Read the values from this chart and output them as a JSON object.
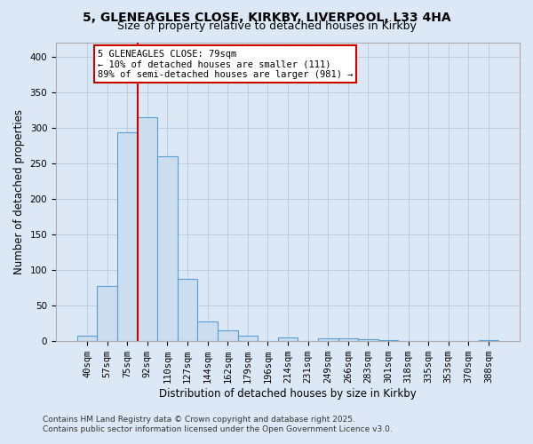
{
  "title1": "5, GLENEAGLES CLOSE, KIRKBY, LIVERPOOL, L33 4HA",
  "title2": "Size of property relative to detached houses in Kirkby",
  "xlabel": "Distribution of detached houses by size in Kirkby",
  "ylabel": "Number of detached properties",
  "bin_labels": [
    "40sqm",
    "57sqm",
    "75sqm",
    "92sqm",
    "110sqm",
    "127sqm",
    "144sqm",
    "162sqm",
    "179sqm",
    "196sqm",
    "214sqm",
    "231sqm",
    "249sqm",
    "266sqm",
    "283sqm",
    "301sqm",
    "318sqm",
    "335sqm",
    "353sqm",
    "370sqm",
    "388sqm"
  ],
  "bar_heights": [
    8,
    78,
    293,
    314,
    260,
    87,
    28,
    15,
    8,
    0,
    5,
    0,
    4,
    4,
    3,
    1,
    0,
    0,
    0,
    0,
    2
  ],
  "bar_color": "#ccddf0",
  "bar_edge_color": "#5a9fd4",
  "vline_x_index": 2,
  "vline_color": "#cc0000",
  "ylim": [
    0,
    420
  ],
  "yticks": [
    0,
    50,
    100,
    150,
    200,
    250,
    300,
    350,
    400
  ],
  "annotation_title": "5 GLENEAGLES CLOSE: 79sqm",
  "annotation_line1": "← 10% of detached houses are smaller (111)",
  "annotation_line2": "89% of semi-detached houses are larger (981) →",
  "annotation_box_color": "#ffffff",
  "annotation_box_edgecolor": "#cc0000",
  "footnote1": "Contains HM Land Registry data © Crown copyright and database right 2025.",
  "footnote2": "Contains public sector information licensed under the Open Government Licence v3.0.",
  "background_color": "#dce8f5",
  "grid_color": "#b8cfe0",
  "title_fontsize": 10,
  "subtitle_fontsize": 9,
  "axis_label_fontsize": 8.5,
  "tick_fontsize": 7.5,
  "footnote_fontsize": 6.5
}
